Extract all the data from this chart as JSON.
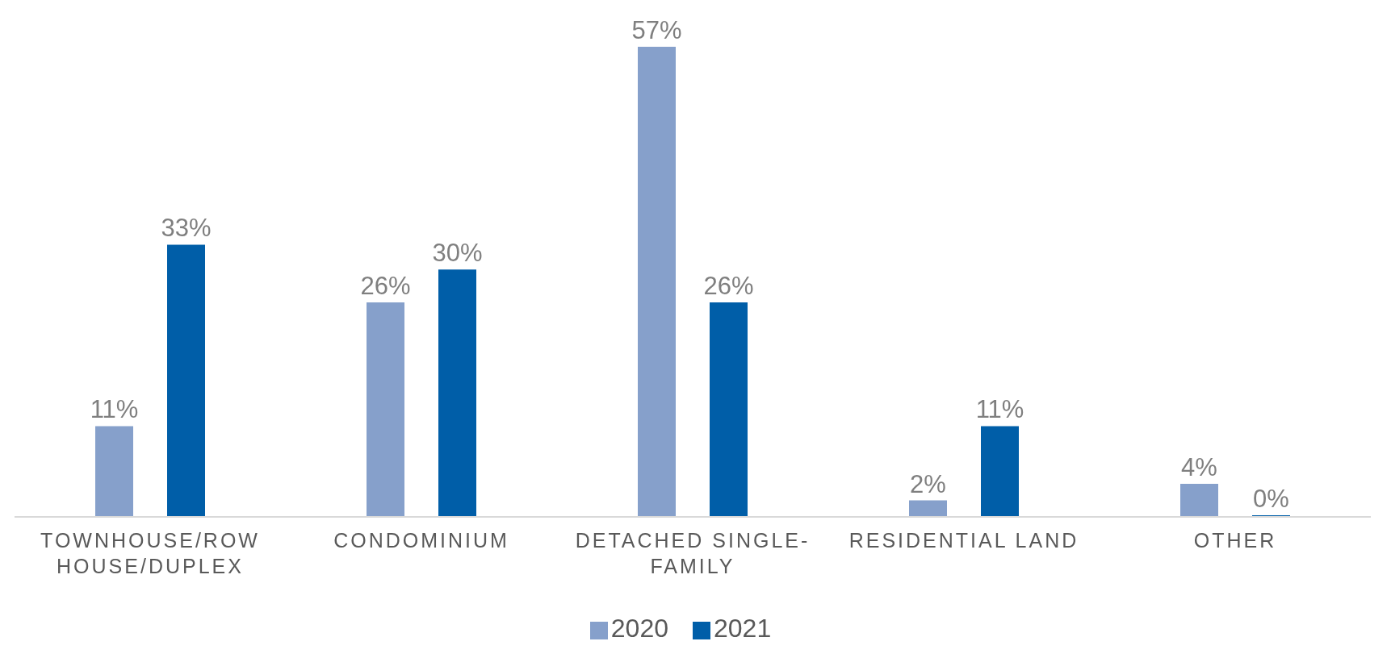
{
  "chart_data": {
    "type": "bar",
    "categories": [
      "TOWNHOUSE/ROW HOUSE/DUPLEX",
      "CONDOMINIUM",
      "DETACHED SINGLE-FAMILY",
      "RESIDENTIAL LAND",
      "OTHER"
    ],
    "series": [
      {
        "name": "2020",
        "color": "#86a0cb",
        "values": [
          11,
          26,
          57,
          2,
          4
        ],
        "value_labels": [
          "11%",
          "26%",
          "57%",
          "2%",
          "4%"
        ]
      },
      {
        "name": "2021",
        "color": "#005ea8",
        "values": [
          33,
          30,
          26,
          11,
          0
        ],
        "value_labels": [
          "33%",
          "30%",
          "26%",
          "11%",
          "0%"
        ]
      }
    ],
    "legend": "bottom"
  }
}
